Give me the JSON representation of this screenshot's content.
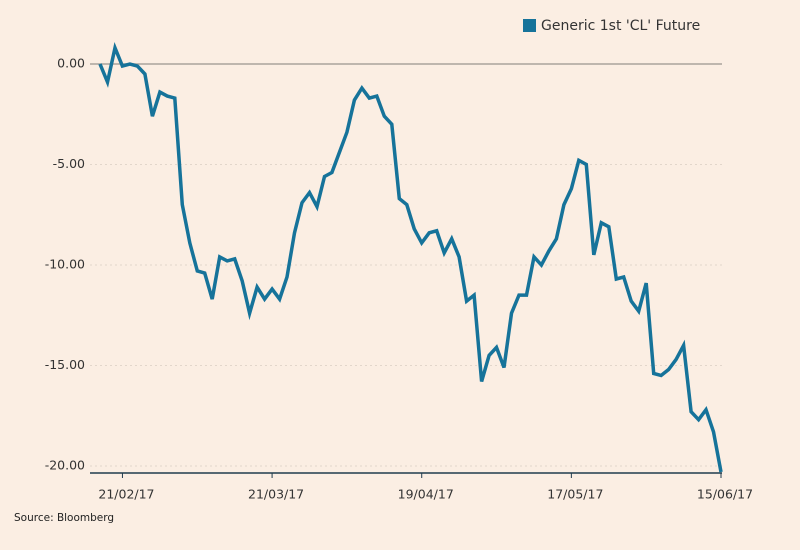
{
  "chart_data": {
    "type": "line",
    "source": "Source: Bloomberg",
    "categories": [
      null,
      null,
      null,
      "21/02/17",
      null,
      null,
      null,
      null,
      null,
      null,
      null,
      null,
      null,
      null,
      null,
      null,
      null,
      null,
      null,
      null,
      null,
      null,
      null,
      "21/03/17",
      null,
      null,
      null,
      null,
      null,
      null,
      null,
      null,
      null,
      null,
      null,
      null,
      null,
      null,
      null,
      null,
      null,
      null,
      null,
      "19/04/17",
      null,
      null,
      null,
      null,
      null,
      null,
      null,
      null,
      null,
      null,
      null,
      null,
      null,
      null,
      null,
      null,
      null,
      null,
      null,
      "17/05/17",
      null,
      null,
      null,
      null,
      null,
      null,
      null,
      null,
      null,
      null,
      null,
      null,
      null,
      null,
      null,
      null,
      null,
      null,
      null,
      "15/06/17"
    ],
    "series": [
      {
        "name": "Generic 1st 'CL' Future",
        "color": "#16739a",
        "values": [
          0.0,
          -0.9,
          0.8,
          -0.1,
          0.0,
          -0.1,
          -0.5,
          -2.6,
          -1.4,
          -1.6,
          -1.7,
          -7.0,
          -8.9,
          -10.3,
          -10.4,
          -11.7,
          -9.6,
          -9.8,
          -9.7,
          -10.8,
          -12.4,
          -11.1,
          -11.7,
          -11.2,
          -11.7,
          -10.6,
          -8.4,
          -6.9,
          -6.4,
          -7.1,
          -5.6,
          -5.4,
          -4.4,
          -3.4,
          -1.8,
          -1.2,
          -1.7,
          -1.6,
          -2.6,
          -3.0,
          -6.7,
          -7.0,
          -8.2,
          -8.9,
          -8.4,
          -8.3,
          -9.4,
          -8.7,
          -9.6,
          -11.8,
          -11.5,
          -15.8,
          -14.5,
          -14.1,
          -15.1,
          -12.4,
          -11.5,
          -11.5,
          -9.6,
          -10.0,
          -9.3,
          -8.7,
          -7.0,
          -6.2,
          -4.8,
          -5.0,
          -9.5,
          -7.9,
          -8.1,
          -10.7,
          -10.6,
          -11.8,
          -12.3,
          -10.9,
          -15.4,
          -15.5,
          -15.2,
          -14.7,
          -14.0,
          -17.3,
          -17.7,
          -17.2,
          -18.3,
          -20.3
        ]
      }
    ],
    "ylim": [
      -20.35,
      1.7
    ],
    "yticks": [
      {
        "value": 0,
        "label": "0.00"
      },
      {
        "value": -5,
        "label": "-5.00"
      },
      {
        "value": -10,
        "label": "-10.00"
      },
      {
        "value": -15,
        "label": "-15.00"
      },
      {
        "value": -20,
        "label": "-20.00"
      }
    ],
    "grid": true,
    "legend": "top-right"
  }
}
